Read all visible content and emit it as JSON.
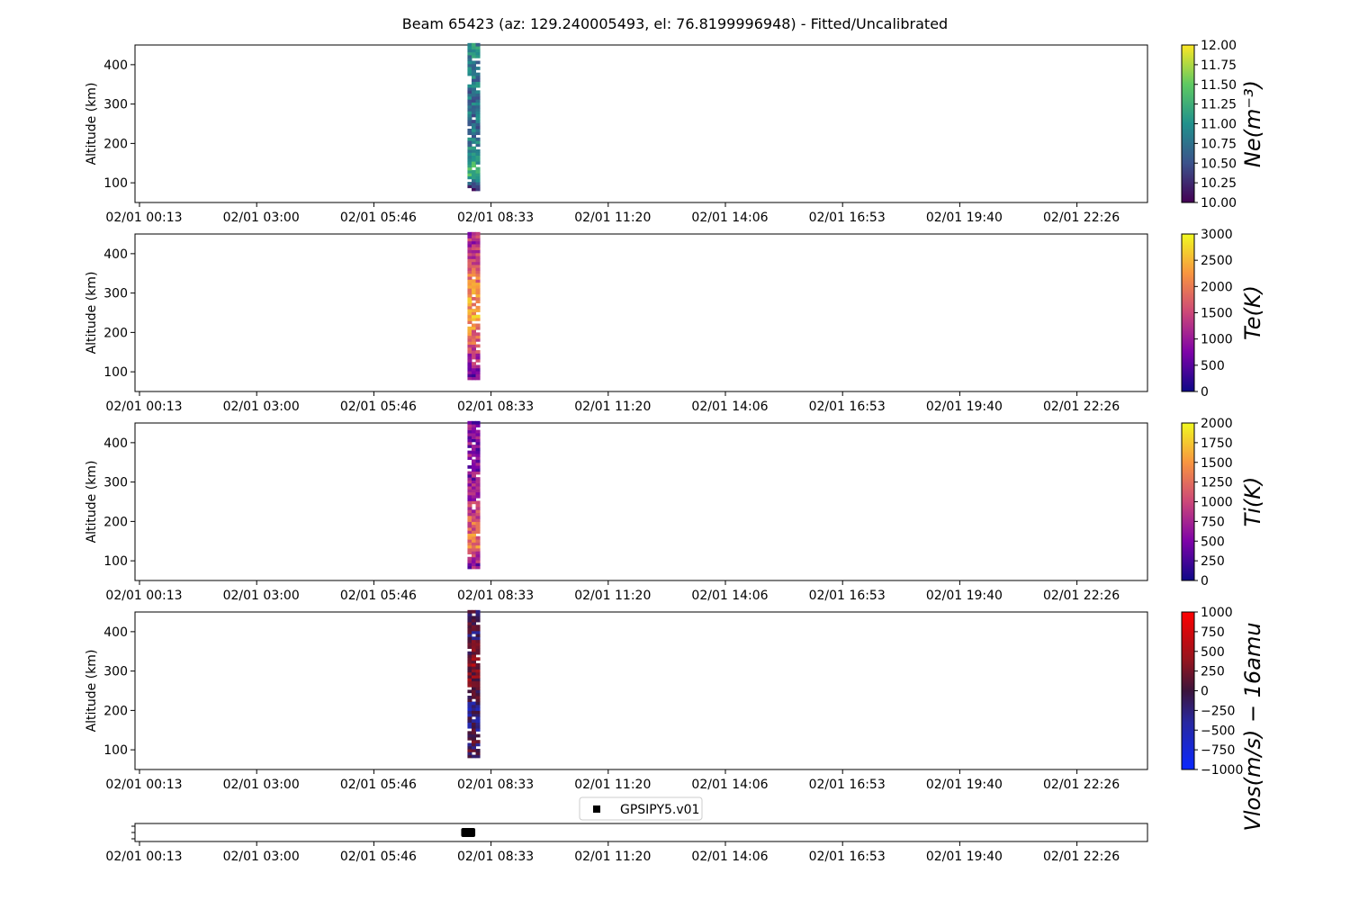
{
  "title": "Beam 65423 (az: 129.240005493, el: 76.8199996948) - Fitted/Uncalibrated",
  "chart_data": [
    {
      "type": "heatmap",
      "ylabel": "Altitude (km)",
      "colorbar_label": "Ne(m^{-3})",
      "colormap": "viridis",
      "clim": [
        10.0,
        12.0
      ],
      "colorbar_ticks": [
        "10.00",
        "10.25",
        "10.50",
        "10.75",
        "11.00",
        "11.25",
        "11.50",
        "11.75",
        "12.00"
      ],
      "ylim": [
        50,
        450
      ],
      "yticks": [
        "100",
        "200",
        "300",
        "400"
      ],
      "xtick_labels": [
        "02/01 00:13",
        "02/01 03:00",
        "02/01 05:46",
        "02/01 08:33",
        "02/01 11:20",
        "02/01 14:06",
        "02/01 16:53",
        "02/01 19:40",
        "02/01 22:26"
      ],
      "data_time_range": [
        "02/01 07:53",
        "02/01 08:13"
      ],
      "data_altitude_range": [
        80,
        450
      ],
      "value_profile": [
        {
          "alt": 85,
          "value": 10.2
        },
        {
          "alt": 120,
          "value": 11.3
        },
        {
          "alt": 200,
          "value": 10.8
        },
        {
          "alt": 300,
          "value": 10.7
        },
        {
          "alt": 420,
          "value": 10.9
        }
      ]
    },
    {
      "type": "heatmap",
      "ylabel": "Altitude (km)",
      "colorbar_label": "Te(K)",
      "colormap": "plasma",
      "clim": [
        0,
        3000
      ],
      "colorbar_ticks": [
        "0",
        "500",
        "1000",
        "1500",
        "2000",
        "2500",
        "3000"
      ],
      "ylim": [
        50,
        450
      ],
      "yticks": [
        "100",
        "200",
        "300",
        "400"
      ],
      "xtick_labels": [
        "02/01 00:13",
        "02/01 03:00",
        "02/01 05:46",
        "02/01 08:33",
        "02/01 11:20",
        "02/01 14:06",
        "02/01 16:53",
        "02/01 19:40",
        "02/01 22:26"
      ],
      "data_time_range": [
        "02/01 07:53",
        "02/01 08:13"
      ],
      "data_altitude_range": [
        80,
        450
      ],
      "value_profile": [
        {
          "alt": 90,
          "value": 700
        },
        {
          "alt": 160,
          "value": 1600
        },
        {
          "alt": 250,
          "value": 2400
        },
        {
          "alt": 330,
          "value": 2000
        },
        {
          "alt": 420,
          "value": 1200
        }
      ]
    },
    {
      "type": "heatmap",
      "ylabel": "Altitude (km)",
      "colorbar_label": "Ti(K)",
      "colormap": "plasma",
      "clim": [
        0,
        2000
      ],
      "colorbar_ticks": [
        "0",
        "250",
        "500",
        "750",
        "1000",
        "1250",
        "1500",
        "1750",
        "2000"
      ],
      "ylim": [
        50,
        450
      ],
      "yticks": [
        "100",
        "200",
        "300",
        "400"
      ],
      "xtick_labels": [
        "02/01 00:13",
        "02/01 03:00",
        "02/01 05:46",
        "02/01 08:33",
        "02/01 11:20",
        "02/01 14:06",
        "02/01 16:53",
        "02/01 19:40",
        "02/01 22:26"
      ],
      "data_time_range": [
        "02/01 07:53",
        "02/01 08:13"
      ],
      "data_altitude_range": [
        80,
        450
      ],
      "value_profile": [
        {
          "alt": 90,
          "value": 600
        },
        {
          "alt": 140,
          "value": 1400
        },
        {
          "alt": 200,
          "value": 1100
        },
        {
          "alt": 300,
          "value": 600
        },
        {
          "alt": 420,
          "value": 550
        }
      ]
    },
    {
      "type": "heatmap",
      "ylabel": "Altitude (km)",
      "colorbar_label": "Vlos(m/s) - 16amu",
      "colormap": "bwr-dark",
      "clim": [
        -1000,
        1000
      ],
      "colorbar_ticks": [
        "-1000",
        "-750",
        "-500",
        "-250",
        "0",
        "250",
        "500",
        "750",
        "1000"
      ],
      "ylim": [
        50,
        450
      ],
      "yticks": [
        "100",
        "200",
        "300",
        "400"
      ],
      "xtick_labels": [
        "02/01 00:13",
        "02/01 03:00",
        "02/01 05:46",
        "02/01 08:33",
        "02/01 11:20",
        "02/01 14:06",
        "02/01 16:53",
        "02/01 19:40",
        "02/01 22:26"
      ],
      "data_time_range": [
        "02/01 07:53",
        "02/01 08:13"
      ],
      "data_altitude_range": [
        80,
        450
      ],
      "value_profile": [
        {
          "alt": 90,
          "value": 50
        },
        {
          "alt": 200,
          "value": -300
        },
        {
          "alt": 300,
          "value": 400
        },
        {
          "alt": 400,
          "value": -100
        }
      ]
    },
    {
      "type": "scatter",
      "legend": [
        "GPSIPY5.v01"
      ],
      "legend_position": "top-center",
      "marker_time_range": [
        "02/01 07:53",
        "02/01 08:13"
      ],
      "xtick_labels": [
        "02/01 00:13",
        "02/01 03:00",
        "02/01 05:46",
        "02/01 08:33",
        "02/01 11:20",
        "02/01 14:06",
        "02/01 16:53",
        "02/01 19:40",
        "02/01 22:26"
      ]
    }
  ],
  "colors": {
    "axis": "#000000",
    "marker": "#000000",
    "background": "#ffffff"
  }
}
